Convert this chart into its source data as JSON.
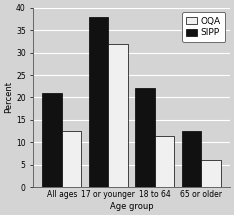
{
  "categories": [
    "All ages",
    "17 or younger",
    "18 to 64",
    "65 or older"
  ],
  "sipp_values": [
    21.0,
    38.0,
    22.0,
    12.5
  ],
  "oqa_values": [
    12.5,
    32.0,
    11.5,
    6.0
  ],
  "bar_color_oqa": "#f0f0f0",
  "bar_color_sipp": "#111111",
  "bar_edgecolor": "#000000",
  "background_color": "#d4d4d4",
  "ylabel": "Percent",
  "xlabel": "Age group",
  "ylim": [
    0,
    40
  ],
  "yticks": [
    0,
    5,
    10,
    15,
    20,
    25,
    30,
    35,
    40
  ],
  "legend_labels": [
    "OQA",
    "SIPP"
  ],
  "axis_fontsize": 6,
  "tick_fontsize": 5.5,
  "legend_fontsize": 6.5,
  "bar_width": 0.42
}
